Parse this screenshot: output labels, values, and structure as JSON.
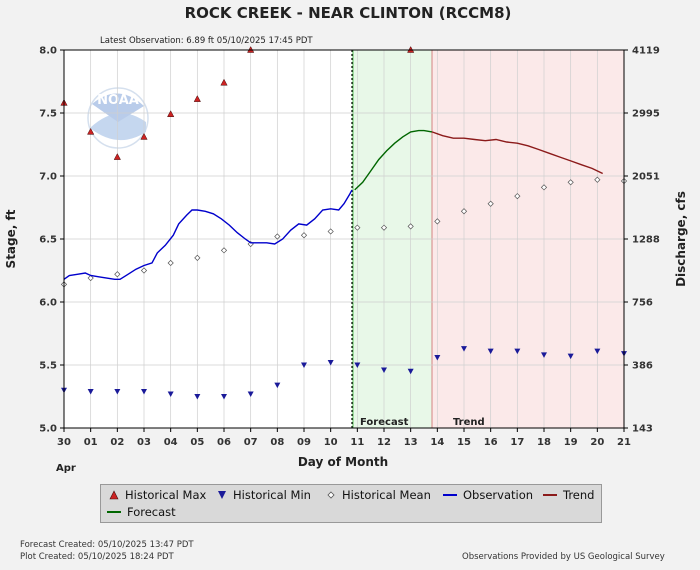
{
  "chart_data": {
    "type": "line",
    "title": "ROCK CREEK - NEAR CLINTON  (RCCM8)",
    "subtitle": "Latest Observation: 6.89 ft 05/10/2025 17:45 PDT",
    "xlabel": "Day of Month",
    "x_month_label": "Apr",
    "ylabel_left": "Stage, ft",
    "ylabel_right": "Discharge, cfs",
    "ylim": [
      5.0,
      8.0
    ],
    "xlim": [
      0,
      21
    ],
    "x_tick_labels": [
      "30",
      "01",
      "02",
      "03",
      "04",
      "05",
      "06",
      "07",
      "08",
      "09",
      "10",
      "11",
      "12",
      "13",
      "14",
      "15",
      "16",
      "17",
      "18",
      "19",
      "20",
      "21"
    ],
    "y_tick_labels": [
      "5.0",
      "5.5",
      "6.0",
      "6.5",
      "7.0",
      "7.5",
      "8.0"
    ],
    "right_ticks": [
      {
        "stage": 5.0,
        "label": "143"
      },
      {
        "stage": 5.5,
        "label": "386"
      },
      {
        "stage": 6.0,
        "label": "756"
      },
      {
        "stage": 6.5,
        "label": "1288"
      },
      {
        "stage": 7.0,
        "label": "2051"
      },
      {
        "stage": 7.5,
        "label": "2995"
      },
      {
        "stage": 8.0,
        "label": "4119"
      }
    ],
    "grid": true,
    "observation_end_x": 10.8,
    "forecast_region": [
      10.8,
      13.8
    ],
    "trend_region": [
      13.8,
      21.0
    ],
    "region_labels": {
      "forecast": "Forecast",
      "trend": "Trend"
    },
    "colors": {
      "observation": "#0000cc",
      "forecast": "#006600",
      "trend": "#8b1a1a",
      "hist_max": "#cc2222",
      "hist_min": "#1a1a99",
      "forecast_bg": "#e8f8e8",
      "trend_bg": "#fbe9e9"
    },
    "series": [
      {
        "name": "Historical Max",
        "kind": "markers-up",
        "x": [
          0,
          1,
          2,
          3,
          4,
          5,
          6,
          7,
          13
        ],
        "y": [
          7.58,
          7.35,
          7.15,
          7.31,
          7.49,
          7.61,
          7.74,
          8.0,
          8.0
        ]
      },
      {
        "name": "Historical Min",
        "kind": "markers-down",
        "x": [
          0,
          1,
          2,
          3,
          4,
          5,
          6,
          7,
          8,
          9,
          10,
          11,
          12,
          13,
          14,
          15,
          16,
          17,
          18,
          19,
          20,
          21
        ],
        "y": [
          5.3,
          5.29,
          5.29,
          5.29,
          5.27,
          5.25,
          5.25,
          5.27,
          5.34,
          5.5,
          5.52,
          5.5,
          5.46,
          5.45,
          5.56,
          5.63,
          5.61,
          5.61,
          5.58,
          5.57,
          5.61,
          5.59
        ]
      },
      {
        "name": "Historical Mean",
        "kind": "markers-diamond",
        "x": [
          0,
          1,
          2,
          3,
          4,
          5,
          6,
          7,
          8,
          9,
          10,
          11,
          12,
          13,
          14,
          15,
          16,
          17,
          18,
          19,
          20,
          21
        ],
        "y": [
          6.14,
          6.19,
          6.22,
          6.25,
          6.31,
          6.35,
          6.41,
          6.46,
          6.52,
          6.53,
          6.56,
          6.59,
          6.59,
          6.6,
          6.64,
          6.72,
          6.78,
          6.84,
          6.91,
          6.95,
          6.97,
          6.96
        ]
      },
      {
        "name": "Observation",
        "kind": "line",
        "x": [
          0,
          0.2,
          0.5,
          0.8,
          1,
          1.3,
          1.6,
          1.9,
          2.1,
          2.4,
          2.7,
          3,
          3.3,
          3.5,
          3.8,
          4.1,
          4.3,
          4.6,
          4.8,
          5,
          5.3,
          5.6,
          5.9,
          6.2,
          6.5,
          6.8,
          7,
          7.3,
          7.6,
          7.9,
          8.2,
          8.5,
          8.8,
          9.1,
          9.4,
          9.7,
          10,
          10.3,
          10.5,
          10.7,
          10.8
        ],
        "y": [
          6.18,
          6.21,
          6.22,
          6.23,
          6.21,
          6.2,
          6.19,
          6.18,
          6.18,
          6.22,
          6.26,
          6.29,
          6.31,
          6.39,
          6.45,
          6.53,
          6.62,
          6.69,
          6.73,
          6.73,
          6.72,
          6.7,
          6.66,
          6.61,
          6.55,
          6.5,
          6.47,
          6.47,
          6.47,
          6.46,
          6.5,
          6.57,
          6.62,
          6.61,
          6.66,
          6.73,
          6.74,
          6.73,
          6.78,
          6.85,
          6.89
        ]
      },
      {
        "name": "Forecast",
        "kind": "line",
        "x": [
          10.9,
          11.2,
          11.5,
          11.8,
          12.1,
          12.4,
          12.7,
          13,
          13.3,
          13.5,
          13.8
        ],
        "y": [
          6.89,
          6.95,
          7.04,
          7.13,
          7.2,
          7.26,
          7.31,
          7.35,
          7.36,
          7.36,
          7.35
        ]
      },
      {
        "name": "Trend",
        "kind": "line",
        "x": [
          13.8,
          14.2,
          14.6,
          15,
          15.4,
          15.8,
          16.2,
          16.6,
          17,
          17.4,
          17.8,
          18.2,
          18.6,
          19,
          19.4,
          19.8,
          20.2
        ],
        "y": [
          7.35,
          7.32,
          7.3,
          7.3,
          7.29,
          7.28,
          7.29,
          7.27,
          7.26,
          7.24,
          7.21,
          7.18,
          7.15,
          7.12,
          7.09,
          7.06,
          7.02
        ]
      }
    ],
    "legend": [
      "Historical Max",
      "Historical Min",
      "Historical Mean",
      "Observation",
      "Trend",
      "Forecast"
    ]
  },
  "footer": {
    "forecast_created": "Forecast Created: 05/10/2025 13:47 PDT",
    "plot_created": "Plot Created: 05/10/2025 18:24 PDT",
    "provider": "Observations Provided by US Geological Survey"
  },
  "logo_text": "NOAA"
}
